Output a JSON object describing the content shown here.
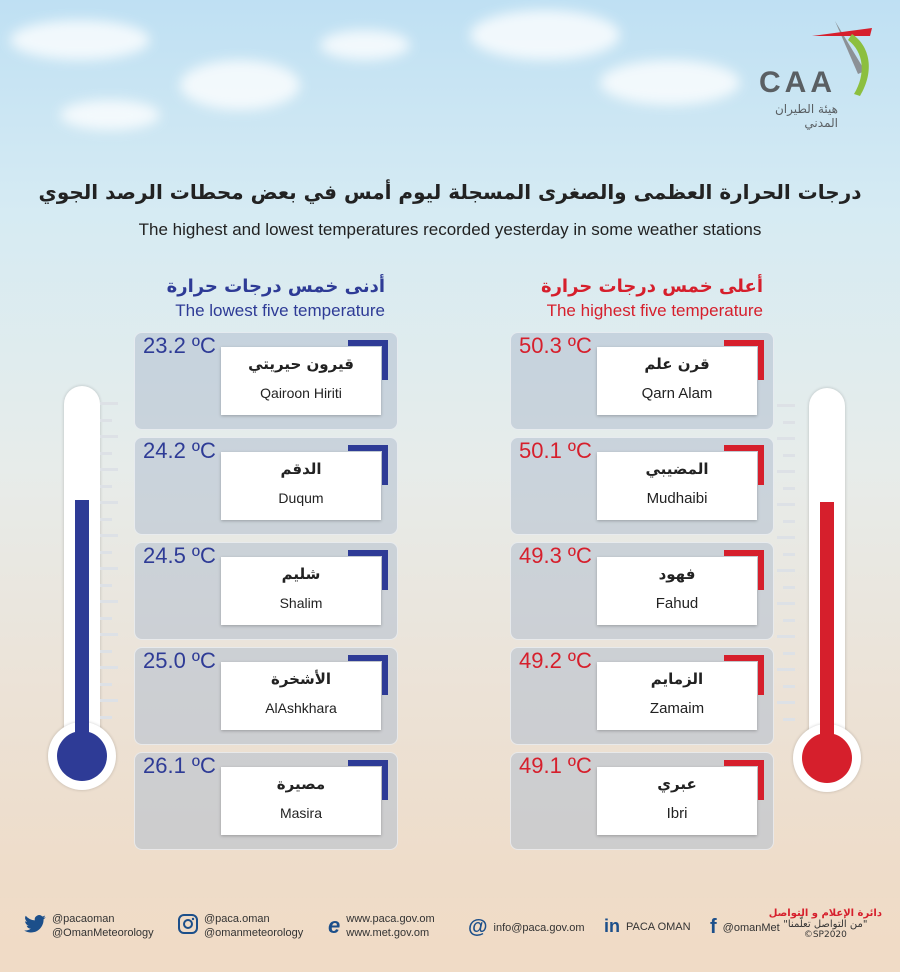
{
  "logo": {
    "text": "CAA",
    "subtitle": "هيئة الطيران المدني"
  },
  "title_ar": "درجات الحرارة العظمى والصغرى المسجلة ليوم أمس في بعض محطات الرصد الجوي",
  "title_en": "The highest and lowest temperatures recorded yesterday in some weather stations",
  "lowest": {
    "heading_ar": "أدنى خمس درجات حرارة",
    "heading_en": "The lowest five temperature",
    "color": "#2e3b96",
    "stations": [
      {
        "ar": "قيرون حيريتي",
        "en": "Qairoon Hiriti",
        "temp": "23.2 ºC"
      },
      {
        "ar": "الدقم",
        "en": "Duqum",
        "temp": "24.2 ºC"
      },
      {
        "ar": "شليم",
        "en": "Shalim",
        "temp": "24.5 ºC"
      },
      {
        "ar": "الأشخرة",
        "en": "AlAshkhara",
        "temp": "25.0 ºC"
      },
      {
        "ar": "مصيرة",
        "en": "Masira",
        "temp": "26.1 ºC"
      }
    ]
  },
  "highest": {
    "heading_ar": "أعلى خمس درجات حرارة",
    "heading_en": "The highest five temperature",
    "color": "#d61f2c",
    "stations": [
      {
        "ar": "قرن علم",
        "en": "Qarn Alam",
        "temp": "50.3 ºC"
      },
      {
        "ar": "المضيبي",
        "en": "Mudhaibi",
        "temp": "50.1 ºC"
      },
      {
        "ar": "فهود",
        "en": "Fahud",
        "temp": "49.3 ºC"
      },
      {
        "ar": "الزمايم",
        "en": "Zamaim",
        "temp": "49.2 ºC"
      },
      {
        "ar": "عبري",
        "en": "Ibri",
        "temp": "49.1 ºC"
      }
    ]
  },
  "footer": {
    "twitter": {
      "icon": "twitter-icon",
      "line1": "@pacaoman",
      "line2": "@OmanMeteorology"
    },
    "instagram": {
      "icon": "instagram-icon",
      "line1": "@paca.oman",
      "line2": "@omanmeteorology"
    },
    "web": {
      "icon": "browser-icon",
      "line1": "www.paca.gov.om",
      "line2": "www.met.gov.om"
    },
    "email": {
      "icon": "at-icon",
      "text": "info@paca.gov.om"
    },
    "linkedin": {
      "icon": "linkedin-icon",
      "text": "PACA OMAN"
    },
    "facebook": {
      "icon": "facebook-icon",
      "text": "@omanMet"
    },
    "dept": {
      "line1": "دائرة الإعلام و التواصل",
      "line2": "\"من التواصل تعلّمنا\"",
      "line3": "©SP2020"
    }
  }
}
